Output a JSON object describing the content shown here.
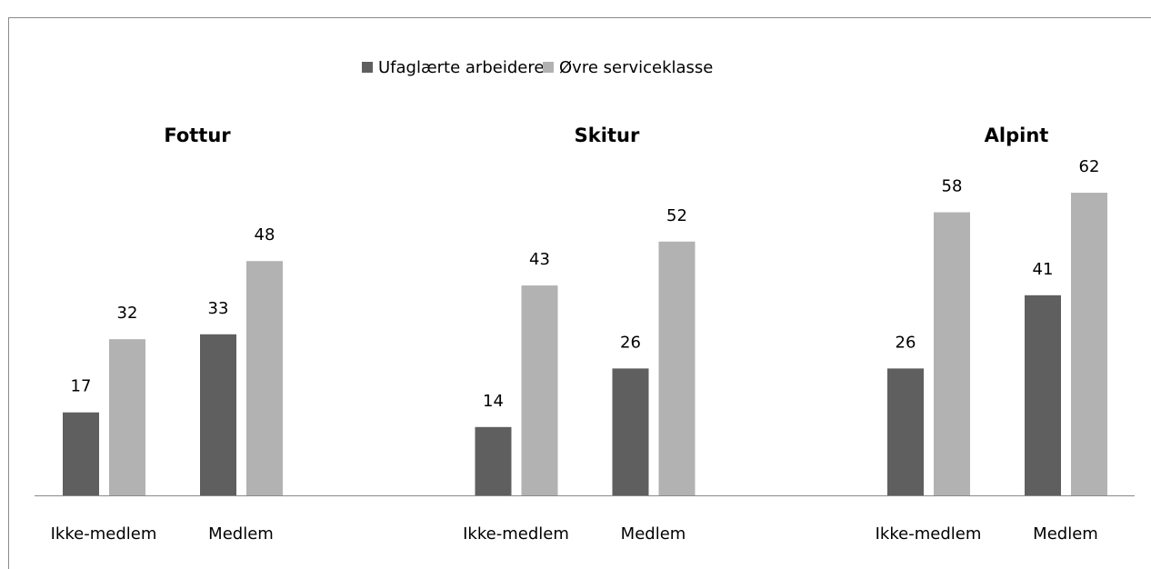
{
  "chart_data": {
    "type": "bar",
    "groups": [
      "Fottur",
      "Skitur",
      "Alpint"
    ],
    "categories": [
      "Ikke-medlem",
      "Medlem",
      "Ikke-medlem",
      "Medlem",
      "Ikke-medlem",
      "Medlem"
    ],
    "series": [
      {
        "name": "Ufaglærte arbeidere",
        "color": "#5f5f5f",
        "values": [
          17,
          33,
          14,
          26,
          26,
          41
        ]
      },
      {
        "name": "Øvre serviceklasse",
        "color": "#b2b2b2",
        "values": [
          32,
          48,
          43,
          52,
          58,
          62
        ]
      }
    ],
    "legend": "top"
  }
}
